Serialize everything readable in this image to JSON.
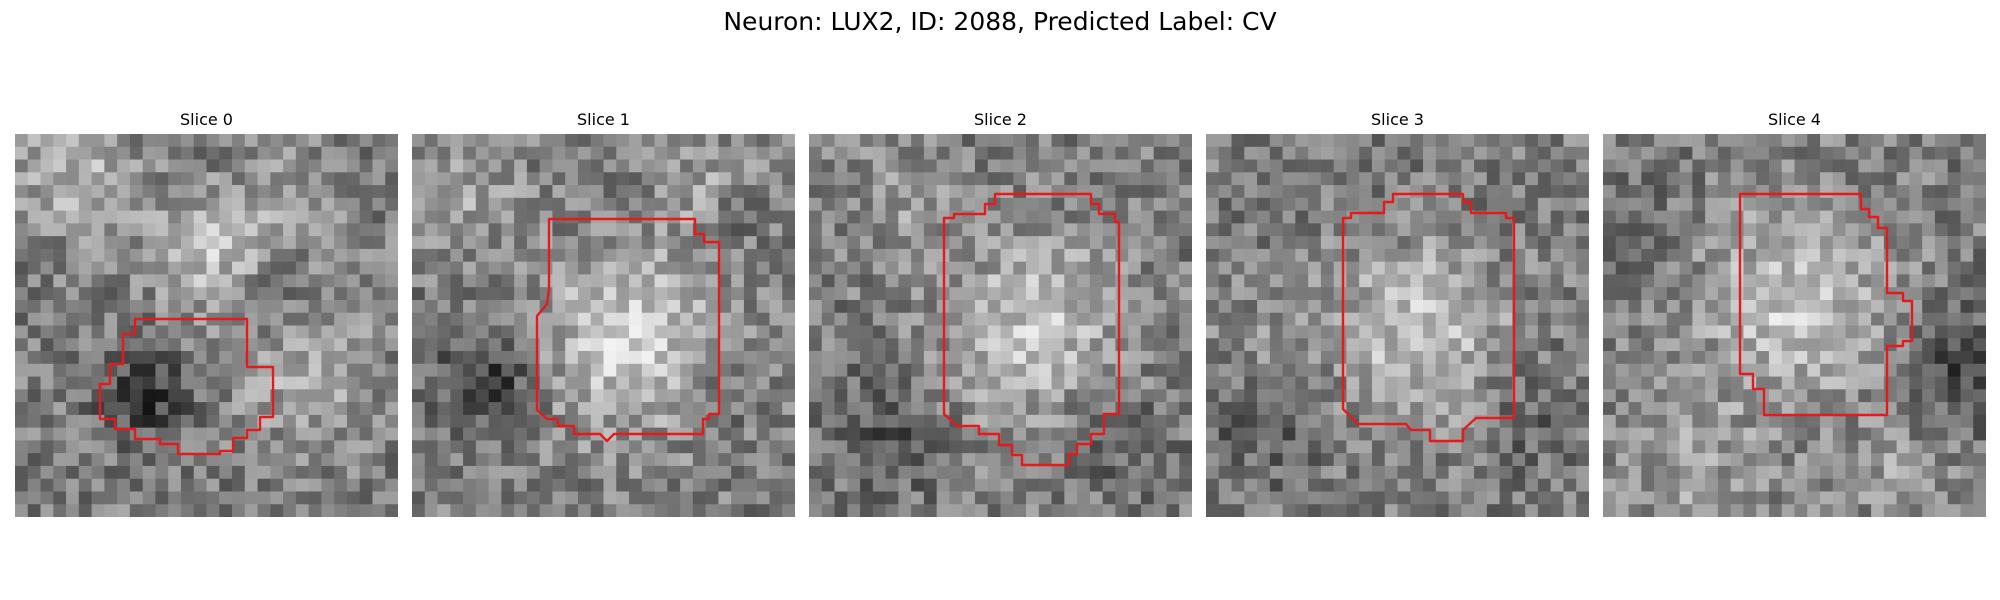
{
  "figure": {
    "title": "Neuron: LUX2, ID: 2088, Predicted Label: CV"
  },
  "panels": [
    {
      "title": "Slice 0",
      "contour_color": "#e41a1c",
      "colormap": "gray"
    },
    {
      "title": "Slice 1",
      "contour_color": "#e41a1c",
      "colormap": "gray"
    },
    {
      "title": "Slice 2",
      "contour_color": "#e41a1c",
      "colormap": "gray"
    },
    {
      "title": "Slice 3",
      "contour_color": "#e41a1c",
      "colormap": "gray"
    },
    {
      "title": "Slice 4",
      "contour_color": "#e41a1c",
      "colormap": "gray"
    }
  ]
}
